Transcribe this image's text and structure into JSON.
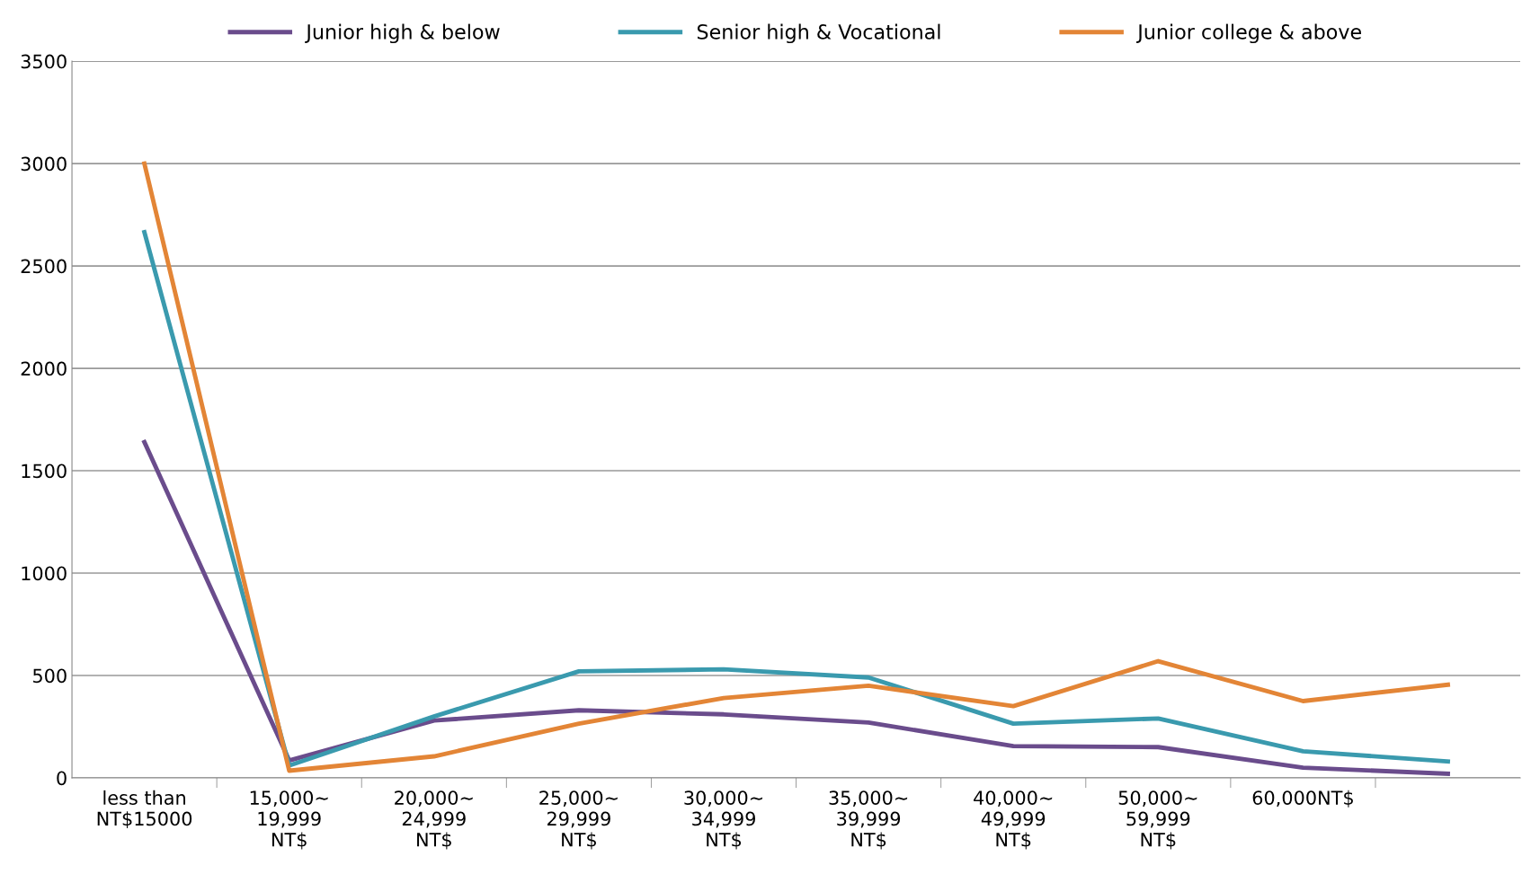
{
  "chart_data": {
    "type": "line",
    "categories": [
      "less than\nNT$15000",
      "15,000~\n19,999\nNT$",
      "20,000~\n24,999\nNT$",
      "25,000~\n29,999\nNT$",
      "30,000~\n34,999\nNT$",
      "35,000~\n39,999\nNT$",
      "40,000~\n49,999\nNT$",
      "50,000~\n59,999\nNT$",
      "60,000NT$",
      null
    ],
    "series": [
      {
        "name": "Junior high & below",
        "color": "#6a4c8c",
        "values": [
          1640,
          85,
          280,
          330,
          310,
          270,
          155,
          150,
          50,
          20
        ]
      },
      {
        "name": "Senior high & Vocational",
        "color": "#3a9aae",
        "values": [
          2665,
          60,
          300,
          520,
          530,
          490,
          265,
          290,
          130,
          80
        ]
      },
      {
        "name": "Junior college & above",
        "color": "#e38536",
        "values": [
          3000,
          35,
          105,
          265,
          390,
          450,
          350,
          570,
          375,
          455
        ]
      }
    ],
    "ylim": [
      0,
      3500
    ],
    "yticks": [
      0,
      500,
      1000,
      1500,
      2000,
      2500,
      3000,
      3500
    ],
    "grid": "y",
    "legend": "top",
    "marker": "none",
    "line_style": "solid"
  }
}
